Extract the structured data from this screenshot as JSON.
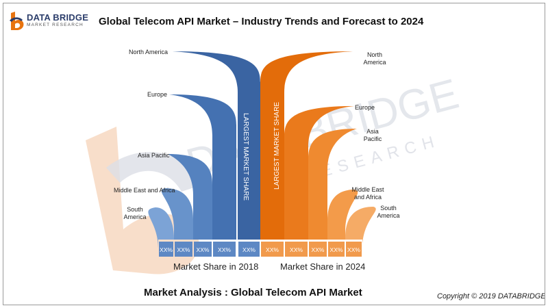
{
  "header": {
    "logo_name": "DATA BRIDGE",
    "logo_sub": "MARKET RESEARCH",
    "title": "Global Telecom API Market – Industry Trends and Forecast to 2024"
  },
  "footer": {
    "title": "Market Analysis :  Global Telecom API Market",
    "copyright": "Copyright © 2019 DATABRIDGE"
  },
  "colors": {
    "blue": "#3f6aa8",
    "orange": "#e8740f",
    "watermark_orange": "#f6d3b8",
    "watermark_gray": "#dcdfe6"
  },
  "chart_data": {
    "type": "bar",
    "categories": [
      "North America",
      "Europe",
      "Asia Pacific",
      "Middle East and Africa",
      "South America"
    ],
    "series": [
      {
        "name": "Market Share in 2018",
        "values": [
          "XX%",
          "XX%",
          "XX%",
          "XX%",
          "XX%"
        ],
        "region_labels": [
          "North America",
          "Europe",
          "Asia Pacific",
          "Middle East and Africa",
          "South America"
        ]
      },
      {
        "name": "Market Share in 2024",
        "values": [
          "XX%",
          "XX%",
          "XX%",
          "XX%",
          "XX%"
        ],
        "region_labels": [
          "North America",
          "Europe",
          "Asia Pacific",
          "Middle East and Africa",
          "South America"
        ]
      }
    ],
    "annotations": [
      "LARGEST MARKET SHARE",
      "LARGEST MARKET SHARE"
    ],
    "legend": "none",
    "grid": false
  }
}
